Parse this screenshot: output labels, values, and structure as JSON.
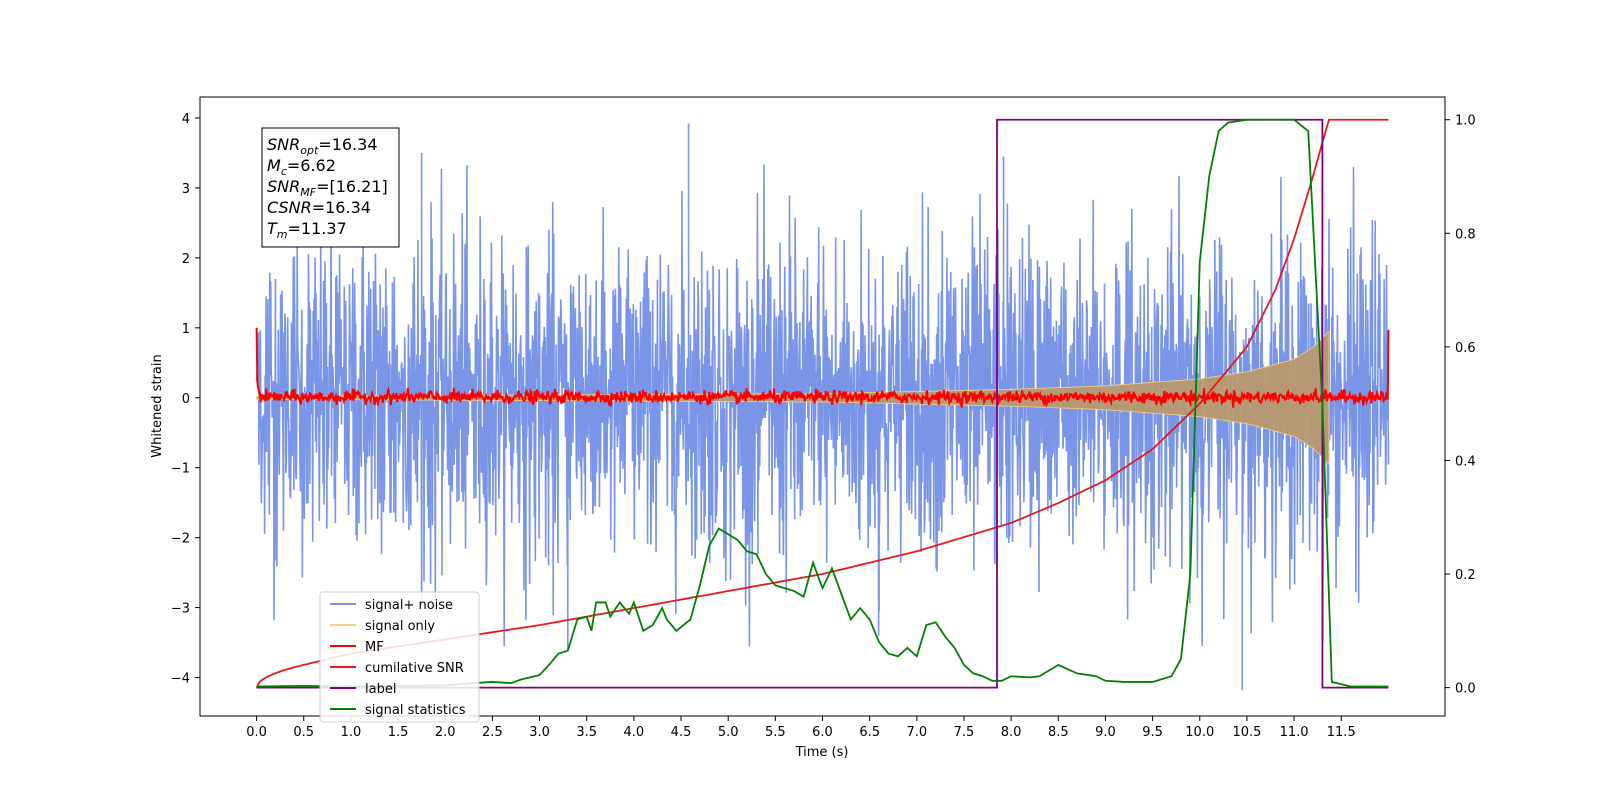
{
  "chart_data": {
    "type": "line",
    "xlabel": "Time (s)",
    "ylabel_left": "Whitened strain",
    "ylabel_right": "",
    "xlim": [
      -0.6,
      12.6
    ],
    "ylim_left": [
      -4.55,
      4.3
    ],
    "ylim_right": [
      -0.05,
      1.04
    ],
    "x_ticks": [
      0.0,
      0.5,
      1.0,
      1.5,
      2.0,
      2.5,
      3.0,
      3.5,
      4.0,
      4.5,
      5.0,
      5.5,
      6.0,
      6.5,
      7.0,
      7.5,
      8.0,
      8.5,
      9.0,
      9.5,
      10.0,
      10.5,
      11.0,
      11.5
    ],
    "x_tick_labels": [
      "0.0",
      "0.5",
      "1.0",
      "1.5",
      "2.0",
      "2.5",
      "3.0",
      "3.5",
      "4.0",
      "4.5",
      "5.0",
      "5.5",
      "6.0",
      "6.5",
      "7.0",
      "7.5",
      "8.0",
      "8.5",
      "9.0",
      "9.5",
      "10.0",
      "10.5",
      "11.0",
      "11.5"
    ],
    "y_ticks_left": [
      -4,
      -3,
      -2,
      -1,
      0,
      1,
      2,
      3,
      4
    ],
    "y_tick_labels_left": [
      "−4",
      "−3",
      "−2",
      "−1",
      "0",
      "1",
      "2",
      "3",
      "4"
    ],
    "y_ticks_right": [
      0.0,
      0.2,
      0.4,
      0.6,
      0.8,
      1.0
    ],
    "y_tick_labels_right": [
      "0.0",
      "0.2",
      "0.4",
      "0.6",
      "0.8",
      "1.0"
    ],
    "grid": false,
    "legend_position": "lower-left",
    "annotation": {
      "lines": [
        {
          "sym": "SNR",
          "sub": "opt",
          "val": "=16.34"
        },
        {
          "sym": "M",
          "sub": "c",
          "val": "=6.62"
        },
        {
          "sym": "SNR",
          "sub": "MF",
          "val": "=[16.21]"
        },
        {
          "sym": "CSNR",
          "sub": "",
          "val": "=16.34"
        },
        {
          "sym": "T",
          "sub": "m",
          "val": "=11.37"
        }
      ]
    },
    "series": [
      {
        "name": "signal+ noise",
        "axis": "left",
        "color": "#7a95e8",
        "kind": "noise-band",
        "x_start": 0.0,
        "x_end": 12.0,
        "typical_range": [
          -2.0,
          2.0
        ],
        "max": 3.92,
        "min": -4.18
      },
      {
        "name": "signal only",
        "axis": "left",
        "color": "#f5cf86",
        "kind": "chirp",
        "x_start": 0.0,
        "x_end": 11.37,
        "envelope": [
          [
            0.0,
            0.02
          ],
          [
            6.0,
            0.06
          ],
          [
            8.0,
            0.12
          ],
          [
            9.0,
            0.17
          ],
          [
            10.0,
            0.27
          ],
          [
            10.5,
            0.37
          ],
          [
            11.0,
            0.55
          ],
          [
            11.2,
            0.72
          ],
          [
            11.3,
            0.85
          ],
          [
            11.37,
            0.95
          ]
        ]
      },
      {
        "name": "MF",
        "axis": "left",
        "color": "#ff0000",
        "kind": "noise-line",
        "x_start": 0.0,
        "x_end": 12.0,
        "edge_values": [
          1.0,
          0.97
        ],
        "typical_range": [
          -0.08,
          0.1
        ]
      },
      {
        "name": "cumilative SNR",
        "axis": "right",
        "color": "#e41a1c",
        "points": [
          [
            0.0,
            0.0
          ],
          [
            0.5,
            0.04
          ],
          [
            1.0,
            0.06
          ],
          [
            2.0,
            0.085
          ],
          [
            3.0,
            0.11
          ],
          [
            4.0,
            0.14
          ],
          [
            5.0,
            0.17
          ],
          [
            6.0,
            0.2
          ],
          [
            7.0,
            0.24
          ],
          [
            7.5,
            0.265
          ],
          [
            8.0,
            0.29
          ],
          [
            8.5,
            0.325
          ],
          [
            9.0,
            0.365
          ],
          [
            9.5,
            0.42
          ],
          [
            10.0,
            0.5
          ],
          [
            10.5,
            0.6
          ],
          [
            10.8,
            0.7
          ],
          [
            11.0,
            0.79
          ],
          [
            11.2,
            0.9
          ],
          [
            11.3,
            0.96
          ],
          [
            11.37,
            1.0
          ],
          [
            12.0,
            1.0
          ]
        ]
      },
      {
        "name": "label",
        "axis": "right",
        "color": "#800080",
        "points": [
          [
            0.0,
            0.0
          ],
          [
            7.85,
            0.0
          ],
          [
            7.85,
            1.0
          ],
          [
            11.3,
            1.0
          ],
          [
            11.3,
            0.0
          ],
          [
            12.0,
            0.0
          ]
        ]
      },
      {
        "name": "signal statistics",
        "axis": "right",
        "color": "#008000",
        "points": [
          [
            0.0,
            0.002
          ],
          [
            0.5,
            0.003
          ],
          [
            1.0,
            0.002
          ],
          [
            1.5,
            0.003
          ],
          [
            2.0,
            0.004
          ],
          [
            2.3,
            0.008
          ],
          [
            2.5,
            0.01
          ],
          [
            2.7,
            0.008
          ],
          [
            2.8,
            0.014
          ],
          [
            3.0,
            0.022
          ],
          [
            3.1,
            0.04
          ],
          [
            3.2,
            0.06
          ],
          [
            3.3,
            0.065
          ],
          [
            3.4,
            0.12
          ],
          [
            3.5,
            0.125
          ],
          [
            3.55,
            0.1
          ],
          [
            3.6,
            0.15
          ],
          [
            3.7,
            0.15
          ],
          [
            3.75,
            0.125
          ],
          [
            3.85,
            0.15
          ],
          [
            3.95,
            0.13
          ],
          [
            4.0,
            0.15
          ],
          [
            4.1,
            0.1
          ],
          [
            4.2,
            0.11
          ],
          [
            4.3,
            0.14
          ],
          [
            4.35,
            0.12
          ],
          [
            4.45,
            0.1
          ],
          [
            4.6,
            0.12
          ],
          [
            4.7,
            0.18
          ],
          [
            4.8,
            0.25
          ],
          [
            4.9,
            0.28
          ],
          [
            5.0,
            0.27
          ],
          [
            5.1,
            0.26
          ],
          [
            5.2,
            0.24
          ],
          [
            5.3,
            0.235
          ],
          [
            5.4,
            0.2
          ],
          [
            5.5,
            0.18
          ],
          [
            5.6,
            0.175
          ],
          [
            5.7,
            0.17
          ],
          [
            5.8,
            0.16
          ],
          [
            5.9,
            0.22
          ],
          [
            6.0,
            0.175
          ],
          [
            6.1,
            0.21
          ],
          [
            6.2,
            0.165
          ],
          [
            6.3,
            0.12
          ],
          [
            6.4,
            0.14
          ],
          [
            6.5,
            0.12
          ],
          [
            6.6,
            0.08
          ],
          [
            6.7,
            0.06
          ],
          [
            6.8,
            0.055
          ],
          [
            6.9,
            0.07
          ],
          [
            7.0,
            0.055
          ],
          [
            7.1,
            0.11
          ],
          [
            7.2,
            0.115
          ],
          [
            7.3,
            0.09
          ],
          [
            7.4,
            0.07
          ],
          [
            7.5,
            0.04
          ],
          [
            7.6,
            0.025
          ],
          [
            7.7,
            0.02
          ],
          [
            7.8,
            0.012
          ],
          [
            7.9,
            0.012
          ],
          [
            8.0,
            0.02
          ],
          [
            8.2,
            0.018
          ],
          [
            8.3,
            0.02
          ],
          [
            8.5,
            0.04
          ],
          [
            8.7,
            0.025
          ],
          [
            8.9,
            0.02
          ],
          [
            9.0,
            0.012
          ],
          [
            9.2,
            0.01
          ],
          [
            9.5,
            0.01
          ],
          [
            9.7,
            0.02
          ],
          [
            9.8,
            0.05
          ],
          [
            9.9,
            0.2
          ],
          [
            10.0,
            0.75
          ],
          [
            10.1,
            0.9
          ],
          [
            10.2,
            0.98
          ],
          [
            10.3,
            0.995
          ],
          [
            10.5,
            1.0
          ],
          [
            10.8,
            1.0
          ],
          [
            11.0,
            1.0
          ],
          [
            11.15,
            0.98
          ],
          [
            11.3,
            0.5
          ],
          [
            11.4,
            0.01
          ],
          [
            11.6,
            0.002
          ],
          [
            12.0,
            0.002
          ]
        ]
      }
    ]
  }
}
